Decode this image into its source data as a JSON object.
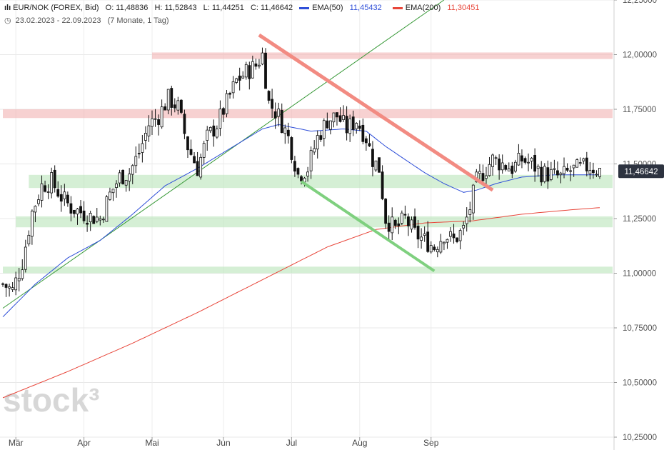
{
  "header": {
    "symbol": "EUR/NOK (FOREX, Bid)",
    "open": "O: 11,48836",
    "high": "H: 11,52843",
    "low": "L: 11,44251",
    "close": "C: 11,46642",
    "ema50_label": "EMA(50)",
    "ema50_value": "11,45432",
    "ema200_label": "EMA(200)",
    "ema200_value": "11,30451",
    "date_range": "23.02.2023 - 22.09.2023",
    "period": "(7 Monate, 1 Tag)"
  },
  "watermark": "stock³",
  "colors": {
    "ema50": "#2f4fd8",
    "ema200": "#e8463a",
    "up_trend": "#3a9a3a",
    "red_zone": "#f2b8b8",
    "green_zone": "#bfe6bf",
    "red_line": "#f28b82",
    "green_line": "#7fd07f",
    "price_badge": "#2d3340"
  },
  "chart_data": {
    "type": "candlestick",
    "title": "EUR/NOK (FOREX, Bid)",
    "x_months": [
      "Mär",
      "Apr",
      "Mai",
      "Jun",
      "Jul",
      "Aug",
      "Sep"
    ],
    "y_ticks": [
      "12,25000",
      "12,00000",
      "11,75000",
      "11,50000",
      "11,25000",
      "11,00000",
      "10,75000",
      "10,50000",
      "10,25000"
    ],
    "y_tick_values": [
      12.25,
      12.0,
      11.75,
      11.5,
      11.25,
      11.0,
      10.75,
      10.5,
      10.25
    ],
    "ylim": [
      10.25,
      12.25
    ],
    "last_price_label": "11,46642",
    "last_price": 11.46642,
    "grid": true,
    "close_path": [
      [
        0,
        10.95
      ],
      [
        3,
        10.92
      ],
      [
        6,
        11.05
      ],
      [
        9,
        11.28
      ],
      [
        12,
        11.4
      ],
      [
        15,
        11.42
      ],
      [
        18,
        11.35
      ],
      [
        21,
        11.3
      ],
      [
        24,
        11.28
      ],
      [
        27,
        11.26
      ],
      [
        30,
        11.25
      ],
      [
        33,
        11.36
      ],
      [
        36,
        11.44
      ],
      [
        39,
        11.46
      ],
      [
        42,
        11.55
      ],
      [
        45,
        11.68
      ],
      [
        48,
        11.72
      ],
      [
        51,
        11.8
      ],
      [
        54,
        11.76
      ],
      [
        57,
        11.58
      ],
      [
        60,
        11.48
      ],
      [
        63,
        11.62
      ],
      [
        66,
        11.68
      ],
      [
        69,
        11.78
      ],
      [
        72,
        11.88
      ],
      [
        75,
        11.92
      ],
      [
        78,
        11.95
      ],
      [
        80,
        12.0
      ],
      [
        82,
        11.78
      ],
      [
        85,
        11.72
      ],
      [
        88,
        11.62
      ],
      [
        91,
        11.45
      ],
      [
        94,
        11.48
      ],
      [
        97,
        11.62
      ],
      [
        100,
        11.7
      ],
      [
        103,
        11.72
      ],
      [
        106,
        11.66
      ],
      [
        109,
        11.7
      ],
      [
        112,
        11.62
      ],
      [
        114,
        11.52
      ],
      [
        116,
        11.48
      ],
      [
        118,
        11.25
      ],
      [
        121,
        11.2
      ],
      [
        124,
        11.25
      ],
      [
        127,
        11.18
      ],
      [
        130,
        11.15
      ],
      [
        133,
        11.12
      ],
      [
        136,
        11.18
      ],
      [
        139,
        11.15
      ],
      [
        142,
        11.2
      ],
      [
        144,
        11.3
      ],
      [
        146,
        11.42
      ],
      [
        148,
        11.46
      ],
      [
        151,
        11.52
      ],
      [
        154,
        11.5
      ],
      [
        157,
        11.48
      ],
      [
        160,
        11.52
      ],
      [
        163,
        11.5
      ],
      [
        166,
        11.46
      ],
      [
        169,
        11.45
      ],
      [
        172,
        11.44
      ],
      [
        175,
        11.47
      ],
      [
        178,
        11.48
      ],
      [
        181,
        11.49
      ],
      [
        184,
        11.47
      ]
    ],
    "ema50": [
      [
        0,
        10.8
      ],
      [
        10,
        10.95
      ],
      [
        20,
        11.07
      ],
      [
        30,
        11.15
      ],
      [
        40,
        11.27
      ],
      [
        50,
        11.4
      ],
      [
        60,
        11.48
      ],
      [
        70,
        11.57
      ],
      [
        80,
        11.66
      ],
      [
        85,
        11.68
      ],
      [
        95,
        11.65
      ],
      [
        105,
        11.66
      ],
      [
        112,
        11.65
      ],
      [
        118,
        11.58
      ],
      [
        124,
        11.52
      ],
      [
        130,
        11.46
      ],
      [
        136,
        11.41
      ],
      [
        142,
        11.37
      ],
      [
        146,
        11.38
      ],
      [
        152,
        11.41
      ],
      [
        160,
        11.44
      ],
      [
        170,
        11.45
      ],
      [
        184,
        11.45
      ]
    ],
    "ema200": [
      [
        0,
        10.43
      ],
      [
        20,
        10.55
      ],
      [
        40,
        10.68
      ],
      [
        60,
        10.82
      ],
      [
        80,
        10.97
      ],
      [
        100,
        11.12
      ],
      [
        115,
        11.2
      ],
      [
        130,
        11.23
      ],
      [
        145,
        11.24
      ],
      [
        160,
        11.27
      ],
      [
        175,
        11.29
      ],
      [
        184,
        11.3
      ]
    ],
    "up_trendline": [
      [
        0,
        10.84
      ],
      [
        136,
        12.25
      ]
    ],
    "down_trendline_red": [
      [
        79,
        12.09
      ],
      [
        151,
        11.38
      ]
    ],
    "down_trendline_green": [
      [
        92,
        11.42
      ],
      [
        133,
        11.01
      ]
    ],
    "zones": [
      {
        "color": "red",
        "y_low": 11.98,
        "y_high": 12.01,
        "x_start": 46,
        "x_end": 184
      },
      {
        "color": "red",
        "y_low": 11.71,
        "y_high": 11.75,
        "x_start": 0,
        "x_end": 184
      },
      {
        "color": "green",
        "y_low": 11.39,
        "y_high": 11.45,
        "x_start": 8,
        "x_end": 184
      },
      {
        "color": "green",
        "y_low": 11.21,
        "y_high": 11.26,
        "x_start": 4,
        "x_end": 184
      },
      {
        "color": "green",
        "y_low": 11.0,
        "y_high": 11.03,
        "x_start": 0,
        "x_end": 184
      }
    ]
  }
}
